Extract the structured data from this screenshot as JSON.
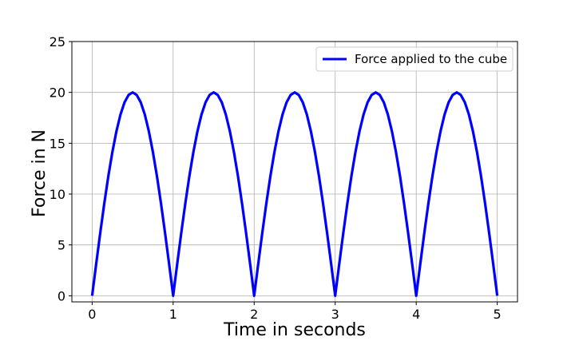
{
  "chart_data": {
    "type": "line",
    "title": "",
    "xlabel": "Time in seconds",
    "ylabel": "Force in N",
    "xlim": [
      -0.25,
      5.25
    ],
    "ylim": [
      -0.6,
      25
    ],
    "xticks": [
      "0",
      "1",
      "2",
      "3",
      "4",
      "5"
    ],
    "yticks": [
      "0",
      "5",
      "10",
      "15",
      "20",
      "25"
    ],
    "grid": true,
    "legend_position": "top-right",
    "series": [
      {
        "name": "Force applied to the cube",
        "color": "#0000ff",
        "x": [
          0,
          0.05,
          0.1,
          0.15,
          0.2,
          0.25,
          0.3,
          0.35,
          0.4,
          0.45,
          0.5,
          0.55,
          0.6,
          0.65,
          0.7,
          0.75,
          0.8,
          0.85,
          0.9,
          0.95,
          1.0,
          1.05,
          1.1,
          1.15,
          1.2,
          1.25,
          1.3,
          1.35,
          1.4,
          1.45,
          1.5,
          1.55,
          1.6,
          1.65,
          1.7,
          1.75,
          1.8,
          1.85,
          1.9,
          1.95,
          2.0,
          2.05,
          2.1,
          2.15,
          2.2,
          2.25,
          2.3,
          2.35,
          2.4,
          2.45,
          2.5,
          2.55,
          2.6,
          2.65,
          2.7,
          2.75,
          2.8,
          2.85,
          2.9,
          2.95,
          3.0,
          3.05,
          3.1,
          3.15,
          3.2,
          3.25,
          3.3,
          3.35,
          3.4,
          3.45,
          3.5,
          3.55,
          3.6,
          3.65,
          3.7,
          3.75,
          3.8,
          3.85,
          3.9,
          3.95,
          4.0,
          4.05,
          4.1,
          4.15,
          4.2,
          4.25,
          4.3,
          4.35,
          4.4,
          4.45,
          4.5,
          4.55,
          4.6,
          4.65,
          4.7,
          4.75,
          4.8,
          4.85,
          4.9,
          4.95,
          5.0
        ],
        "y": [
          0,
          3.13,
          6.18,
          9.08,
          11.76,
          14.14,
          16.18,
          17.82,
          19.02,
          19.75,
          20,
          19.75,
          19.02,
          17.82,
          16.18,
          14.14,
          11.76,
          9.08,
          6.18,
          3.13,
          0,
          3.13,
          6.18,
          9.08,
          11.76,
          14.14,
          16.18,
          17.82,
          19.02,
          19.75,
          20,
          19.75,
          19.02,
          17.82,
          16.18,
          14.14,
          11.76,
          9.08,
          6.18,
          3.13,
          0,
          3.13,
          6.18,
          9.08,
          11.76,
          14.14,
          16.18,
          17.82,
          19.02,
          19.75,
          20,
          19.75,
          19.02,
          17.82,
          16.18,
          14.14,
          11.76,
          9.08,
          6.18,
          3.13,
          0,
          3.13,
          6.18,
          9.08,
          11.76,
          14.14,
          16.18,
          17.82,
          19.02,
          19.75,
          20,
          19.75,
          19.02,
          17.82,
          16.18,
          14.14,
          11.76,
          9.08,
          6.18,
          3.13,
          0,
          3.13,
          6.18,
          9.08,
          11.76,
          14.14,
          16.18,
          17.82,
          19.02,
          19.75,
          20,
          19.75,
          19.02,
          17.82,
          16.18,
          14.14,
          11.76,
          9.08,
          6.18,
          3.13,
          0
        ]
      }
    ]
  }
}
